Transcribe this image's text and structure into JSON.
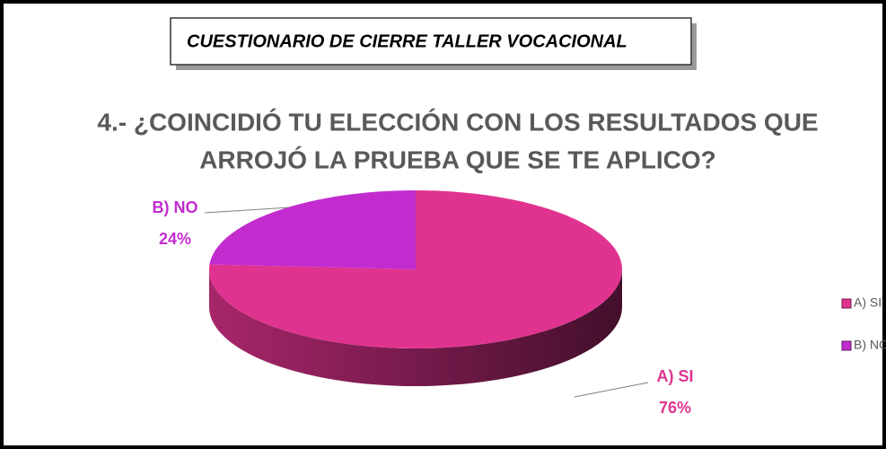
{
  "header": "CUESTIONARIO DE CIERRE TALLER VOCACIONAL",
  "chart_data": {
    "type": "pie",
    "title": [
      "4.- ¿COINCIDIÓ  TU ELECCIÓN CON LOS RESULTADOS QUE",
      "ARROJÓ LA PRUEBA QUE SE TE APLICO?"
    ],
    "categories": [
      "A) SI",
      "B) NO"
    ],
    "values": [
      76,
      24
    ],
    "value_labels": [
      "76%",
      "24%"
    ],
    "colors": [
      "#e0338f",
      "#c22ccf"
    ],
    "legend": "right"
  }
}
